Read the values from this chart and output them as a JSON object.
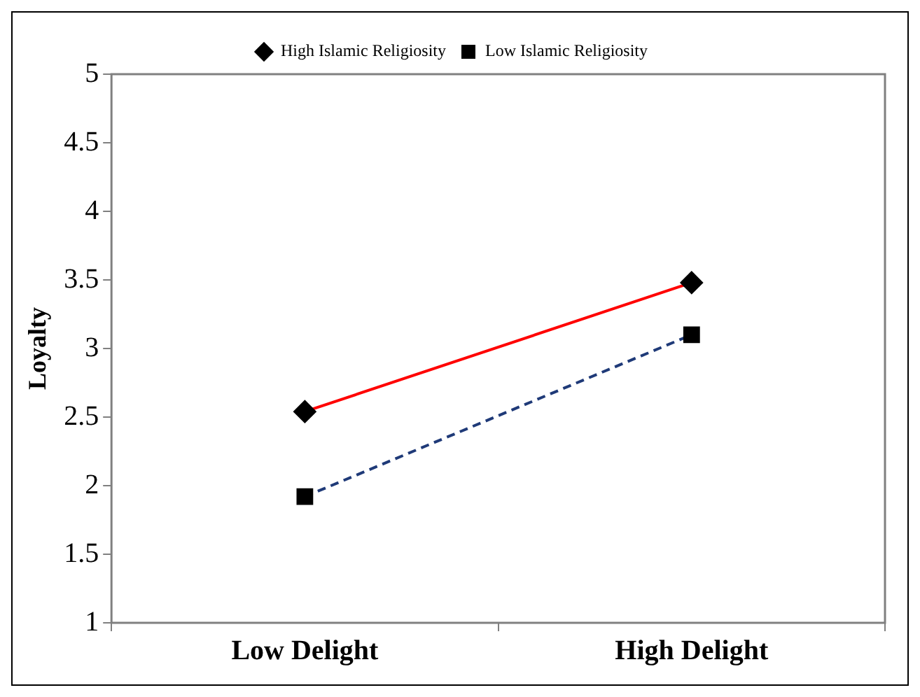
{
  "chart_data": {
    "type": "line",
    "ylabel": "Loyalty",
    "categories": [
      "Low Delight",
      "High Delight"
    ],
    "series": [
      {
        "name": "High Islamic Religiosity",
        "color": "#ff0000",
        "values": [
          2.54,
          3.48
        ],
        "marker": "diamond",
        "line_style": "solid"
      },
      {
        "name": "Low Islamic Religiosity",
        "color": "#1f3a78",
        "values": [
          1.92,
          3.1
        ],
        "marker": "square",
        "line_style": "dashed"
      }
    ],
    "ylim": [
      1,
      5
    ],
    "yticks": [
      1,
      1.5,
      2,
      2.5,
      3,
      3.5,
      4,
      4.5,
      5
    ],
    "grid": false,
    "legend": "top"
  }
}
